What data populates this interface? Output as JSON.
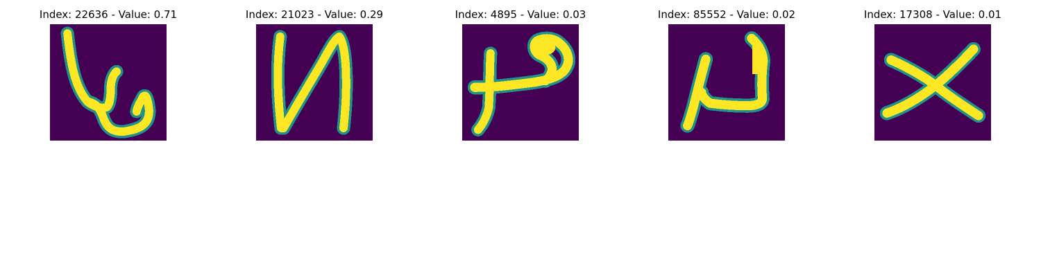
{
  "colors": {
    "background": "#440154",
    "mid": "#21918c",
    "high": "#fde725"
  },
  "panels": [
    {
      "title": "Index: 22636 - Value: 0.71"
    },
    {
      "title": "Index: 21023 - Value: 0.29"
    },
    {
      "title": "Index: 4895 - Value: 0.03"
    },
    {
      "title": "Index: 85552 - Value: 0.02"
    },
    {
      "title": "Index: 17308 - Value: 0.01"
    }
  ]
}
